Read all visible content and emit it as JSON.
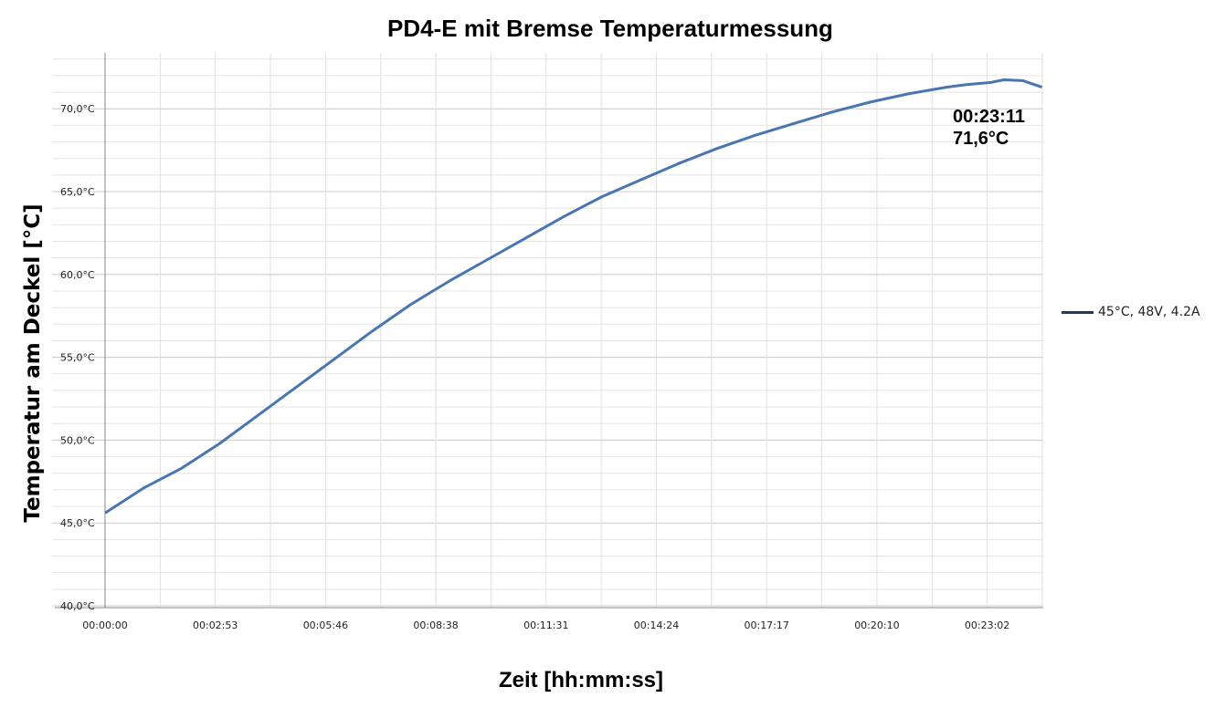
{
  "chart_data": {
    "type": "line",
    "title": "PD4-E mit Bremse Temperaturmessung",
    "xlabel": "Zeit  [hh:mm:ss]",
    "ylabel": "Temperatur am Deckel [°C]",
    "x_tick_labels": [
      "00:00:00",
      "00:02:53",
      "00:05:46",
      "00:08:38",
      "00:11:31",
      "00:14:24",
      "00:17:17",
      "00:20:10",
      "00:23:02"
    ],
    "y_tick_labels": [
      "40,0°C",
      "45,0°C",
      "50,0°C",
      "55,0°C",
      "60,0°C",
      "65,0°C",
      "70,0°C"
    ],
    "ylim": [
      40,
      73
    ],
    "xlim": [
      "00:00:00",
      "00:25:00"
    ],
    "grid": true,
    "legend_position": "right",
    "series": [
      {
        "name": "45°C, 48V, 4.2A",
        "color": "#4a76b0",
        "x": [
          "00:00:00",
          "00:01:00",
          "00:02:00",
          "00:03:00",
          "00:04:00",
          "00:05:00",
          "00:06:00",
          "00:07:00",
          "00:08:00",
          "00:09:00",
          "00:10:00",
          "00:11:00",
          "00:12:00",
          "00:13:00",
          "00:14:00",
          "00:15:00",
          "00:16:00",
          "00:17:00",
          "00:18:00",
          "00:19:00",
          "00:20:00",
          "00:21:00",
          "00:22:00",
          "00:22:30",
          "00:23:11",
          "00:23:30",
          "00:24:00",
          "00:24:30"
        ],
        "y": [
          45.6,
          47.1,
          48.3,
          49.8,
          51.5,
          53.2,
          54.9,
          56.6,
          58.2,
          59.6,
          60.9,
          62.2,
          63.5,
          64.7,
          65.7,
          66.7,
          67.6,
          68.4,
          69.1,
          69.8,
          70.4,
          70.9,
          71.3,
          71.45,
          71.6,
          71.75,
          71.7,
          71.3
        ]
      }
    ],
    "annotation": {
      "line1": "00:23:11",
      "line2": "71,6°C"
    }
  }
}
